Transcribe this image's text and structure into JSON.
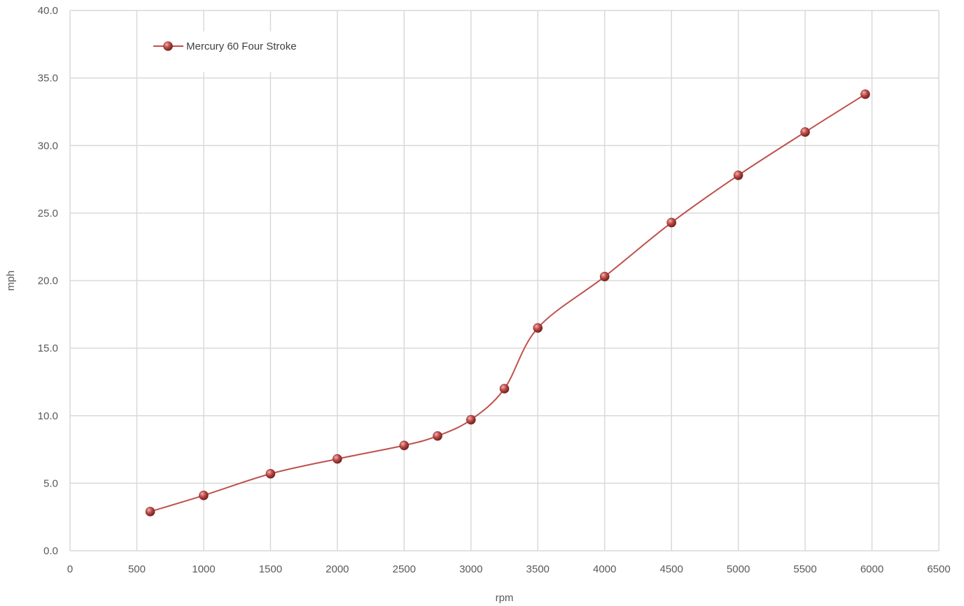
{
  "chart_data": {
    "type": "line",
    "title": "",
    "xlabel": "rpm",
    "ylabel": "mph",
    "xlim": [
      0,
      6500
    ],
    "ylim": [
      0,
      40
    ],
    "x_ticks": [
      "0",
      "500",
      "1000",
      "1500",
      "2000",
      "2500",
      "3000",
      "3500",
      "4000",
      "4500",
      "5000",
      "5500",
      "6000",
      "6500"
    ],
    "y_ticks": [
      "0.0",
      "5.0",
      "10.0",
      "15.0",
      "20.0",
      "25.0",
      "30.0",
      "35.0",
      "40.0"
    ],
    "grid": true,
    "legend": {
      "position": "top-left"
    },
    "smooth": true,
    "series": [
      {
        "name": "Mercury 60 Four Stroke",
        "color": "#c0504d",
        "x": [
          600,
          1000,
          1500,
          2000,
          2500,
          2750,
          3000,
          3250,
          3500,
          4000,
          4500,
          5000,
          5500,
          5950
        ],
        "y": [
          2.9,
          4.1,
          5.7,
          6.8,
          7.8,
          8.5,
          9.7,
          12.0,
          16.5,
          20.3,
          24.3,
          27.8,
          31.0,
          33.8
        ]
      }
    ]
  }
}
